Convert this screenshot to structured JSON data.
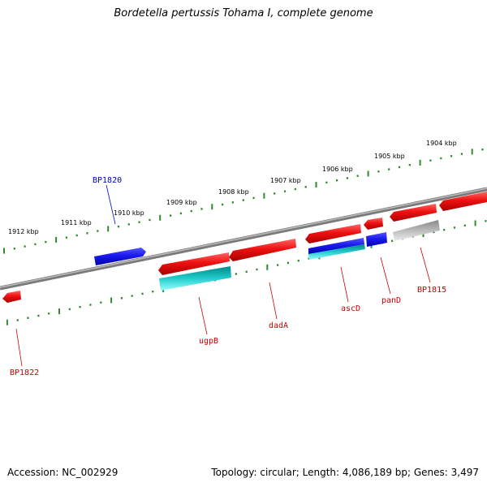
{
  "title": "Bordetella pertussis Tohama I, complete genome",
  "footer": {
    "accession": "Accession: NC_002929",
    "summary": "Topology: circular; Length: 4,086,189 bp; Genes: 3,497"
  },
  "colors": {
    "backbone": "#808080",
    "ruler": "#2e8b2e",
    "gene_red": "#ee1111",
    "gene_blue": "#1a1aee",
    "gene_cyan": "#22cccc",
    "gene_gray": "#aaaaaa",
    "label_red": "#cc0000",
    "label_blue": "#0000cc"
  },
  "ruler_labels": [
    "1912 kbp",
    "1911 kbp",
    "1910 kbp",
    "1909 kbp",
    "1908 kbp",
    "1907 kbp",
    "1906 kbp",
    "1905 kbp",
    "1904 kbp"
  ],
  "gene_labels": [
    {
      "name": "BP1820",
      "strand": "upper",
      "color": "blue"
    },
    {
      "name": "BP1822",
      "strand": "lower",
      "color": "red"
    },
    {
      "name": "ugpB",
      "strand": "lower",
      "color": "red"
    },
    {
      "name": "dadA",
      "strand": "lower",
      "color": "red"
    },
    {
      "name": "ascD",
      "strand": "lower",
      "color": "red"
    },
    {
      "name": "panD",
      "strand": "lower",
      "color": "red"
    },
    {
      "name": "BP1815",
      "strand": "lower",
      "color": "red"
    }
  ]
}
